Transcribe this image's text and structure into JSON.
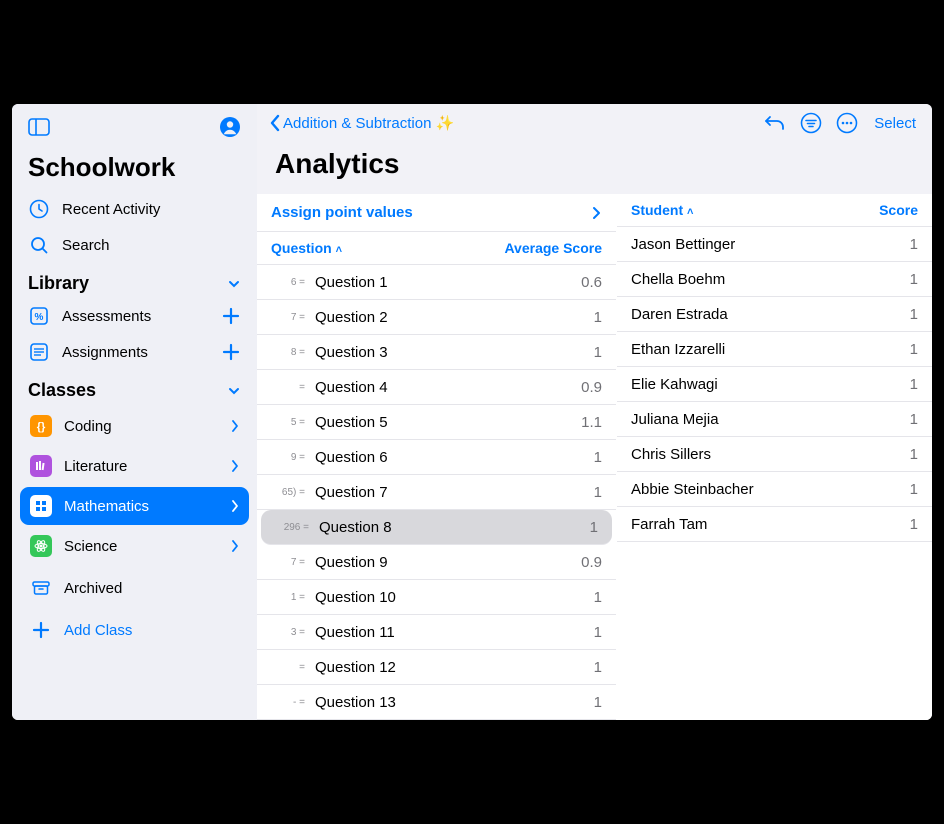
{
  "colors": {
    "accent": "#007aff",
    "sidebar_bg": "#eff0f6",
    "main_bg": "#f2f2f7",
    "row_border": "#e5e5ea",
    "muted": "#8e8e93",
    "selected_q_bg": "#d8d8dc"
  },
  "app": {
    "title": "Schoolwork"
  },
  "sidebar": {
    "recent": "Recent Activity",
    "search": "Search",
    "library_header": "Library",
    "assessments": "Assessments",
    "assignments": "Assignments",
    "classes_header": "Classes",
    "classes": [
      {
        "label": "Coding",
        "color": "#ff9500"
      },
      {
        "label": "Literature",
        "color": "#af52de"
      },
      {
        "label": "Mathematics",
        "color": "#ffffff"
      },
      {
        "label": "Science",
        "color": "#34c759"
      }
    ],
    "archived": "Archived",
    "add_class": "Add Class"
  },
  "header": {
    "back_label": "Addition & Subtraction ✨",
    "page_title": "Analytics",
    "select": "Select"
  },
  "questions_panel": {
    "assign_label": "Assign point values",
    "col_question": "Question",
    "col_avg": "Average Score",
    "rows": [
      {
        "prefix": "6 =",
        "label": "Question 1",
        "score": "0.6"
      },
      {
        "prefix": "7 =",
        "label": "Question 2",
        "score": "1"
      },
      {
        "prefix": "8 =",
        "label": "Question 3",
        "score": "1"
      },
      {
        "prefix": "=",
        "label": "Question 4",
        "score": "0.9"
      },
      {
        "prefix": "5 =",
        "label": "Question 5",
        "score": "1.1"
      },
      {
        "prefix": "9 =",
        "label": "Question 6",
        "score": "1"
      },
      {
        "prefix": "65) =",
        "label": "Question 7",
        "score": "1"
      },
      {
        "prefix": "296 =",
        "label": "Question 8",
        "score": "1",
        "selected": true
      },
      {
        "prefix": "7 =",
        "label": "Question 9",
        "score": "0.9"
      },
      {
        "prefix": "1 =",
        "label": "Question 10",
        "score": "1"
      },
      {
        "prefix": "3 =",
        "label": "Question 11",
        "score": "1"
      },
      {
        "prefix": " =",
        "label": "Question 12",
        "score": "1"
      },
      {
        "prefix": "- =",
        "label": "Question 13",
        "score": "1"
      }
    ]
  },
  "students_panel": {
    "col_student": "Student",
    "col_score": "Score",
    "rows": [
      {
        "name": "Jason Bettinger",
        "score": "1"
      },
      {
        "name": "Chella Boehm",
        "score": "1"
      },
      {
        "name": "Daren Estrada",
        "score": "1"
      },
      {
        "name": "Ethan Izzarelli",
        "score": "1"
      },
      {
        "name": "Elie Kahwagi",
        "score": "1"
      },
      {
        "name": "Juliana Mejia",
        "score": "1"
      },
      {
        "name": "Chris Sillers",
        "score": "1"
      },
      {
        "name": "Abbie Steinbacher",
        "score": "1"
      },
      {
        "name": "Farrah Tam",
        "score": "1"
      }
    ]
  }
}
